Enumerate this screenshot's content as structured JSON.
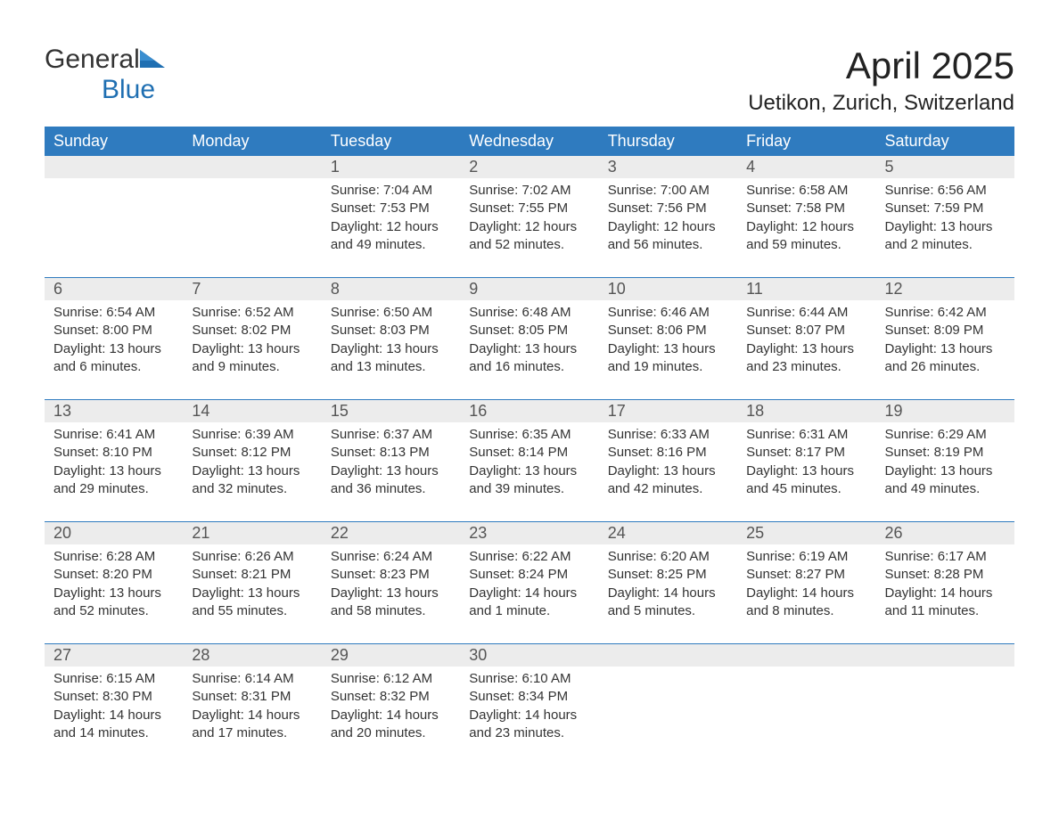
{
  "logo": {
    "word1": "General",
    "word2": "Blue"
  },
  "title": "April 2025",
  "location": "Uetikon, Zurich, Switzerland",
  "colors": {
    "header_bg": "#2f7bbf",
    "header_text": "#ffffff",
    "daynum_bg": "#ececec",
    "text": "#333333",
    "logo_blue": "#1f6fb2",
    "page_bg": "#ffffff",
    "week_border": "#2f7bbf"
  },
  "fonts": {
    "title_size": 42,
    "location_size": 24,
    "dow_size": 18,
    "daynum_size": 18,
    "detail_size": 15
  },
  "calendar": {
    "days_of_week": [
      "Sunday",
      "Monday",
      "Tuesday",
      "Wednesday",
      "Thursday",
      "Friday",
      "Saturday"
    ],
    "weeks": [
      [
        null,
        null,
        {
          "n": "1",
          "sr": "Sunrise: 7:04 AM",
          "ss": "Sunset: 7:53 PM",
          "d1": "Daylight: 12 hours",
          "d2": "and 49 minutes."
        },
        {
          "n": "2",
          "sr": "Sunrise: 7:02 AM",
          "ss": "Sunset: 7:55 PM",
          "d1": "Daylight: 12 hours",
          "d2": "and 52 minutes."
        },
        {
          "n": "3",
          "sr": "Sunrise: 7:00 AM",
          "ss": "Sunset: 7:56 PM",
          "d1": "Daylight: 12 hours",
          "d2": "and 56 minutes."
        },
        {
          "n": "4",
          "sr": "Sunrise: 6:58 AM",
          "ss": "Sunset: 7:58 PM",
          "d1": "Daylight: 12 hours",
          "d2": "and 59 minutes."
        },
        {
          "n": "5",
          "sr": "Sunrise: 6:56 AM",
          "ss": "Sunset: 7:59 PM",
          "d1": "Daylight: 13 hours",
          "d2": "and 2 minutes."
        }
      ],
      [
        {
          "n": "6",
          "sr": "Sunrise: 6:54 AM",
          "ss": "Sunset: 8:00 PM",
          "d1": "Daylight: 13 hours",
          "d2": "and 6 minutes."
        },
        {
          "n": "7",
          "sr": "Sunrise: 6:52 AM",
          "ss": "Sunset: 8:02 PM",
          "d1": "Daylight: 13 hours",
          "d2": "and 9 minutes."
        },
        {
          "n": "8",
          "sr": "Sunrise: 6:50 AM",
          "ss": "Sunset: 8:03 PM",
          "d1": "Daylight: 13 hours",
          "d2": "and 13 minutes."
        },
        {
          "n": "9",
          "sr": "Sunrise: 6:48 AM",
          "ss": "Sunset: 8:05 PM",
          "d1": "Daylight: 13 hours",
          "d2": "and 16 minutes."
        },
        {
          "n": "10",
          "sr": "Sunrise: 6:46 AM",
          "ss": "Sunset: 8:06 PM",
          "d1": "Daylight: 13 hours",
          "d2": "and 19 minutes."
        },
        {
          "n": "11",
          "sr": "Sunrise: 6:44 AM",
          "ss": "Sunset: 8:07 PM",
          "d1": "Daylight: 13 hours",
          "d2": "and 23 minutes."
        },
        {
          "n": "12",
          "sr": "Sunrise: 6:42 AM",
          "ss": "Sunset: 8:09 PM",
          "d1": "Daylight: 13 hours",
          "d2": "and 26 minutes."
        }
      ],
      [
        {
          "n": "13",
          "sr": "Sunrise: 6:41 AM",
          "ss": "Sunset: 8:10 PM",
          "d1": "Daylight: 13 hours",
          "d2": "and 29 minutes."
        },
        {
          "n": "14",
          "sr": "Sunrise: 6:39 AM",
          "ss": "Sunset: 8:12 PM",
          "d1": "Daylight: 13 hours",
          "d2": "and 32 minutes."
        },
        {
          "n": "15",
          "sr": "Sunrise: 6:37 AM",
          "ss": "Sunset: 8:13 PM",
          "d1": "Daylight: 13 hours",
          "d2": "and 36 minutes."
        },
        {
          "n": "16",
          "sr": "Sunrise: 6:35 AM",
          "ss": "Sunset: 8:14 PM",
          "d1": "Daylight: 13 hours",
          "d2": "and 39 minutes."
        },
        {
          "n": "17",
          "sr": "Sunrise: 6:33 AM",
          "ss": "Sunset: 8:16 PM",
          "d1": "Daylight: 13 hours",
          "d2": "and 42 minutes."
        },
        {
          "n": "18",
          "sr": "Sunrise: 6:31 AM",
          "ss": "Sunset: 8:17 PM",
          "d1": "Daylight: 13 hours",
          "d2": "and 45 minutes."
        },
        {
          "n": "19",
          "sr": "Sunrise: 6:29 AM",
          "ss": "Sunset: 8:19 PM",
          "d1": "Daylight: 13 hours",
          "d2": "and 49 minutes."
        }
      ],
      [
        {
          "n": "20",
          "sr": "Sunrise: 6:28 AM",
          "ss": "Sunset: 8:20 PM",
          "d1": "Daylight: 13 hours",
          "d2": "and 52 minutes."
        },
        {
          "n": "21",
          "sr": "Sunrise: 6:26 AM",
          "ss": "Sunset: 8:21 PM",
          "d1": "Daylight: 13 hours",
          "d2": "and 55 minutes."
        },
        {
          "n": "22",
          "sr": "Sunrise: 6:24 AM",
          "ss": "Sunset: 8:23 PM",
          "d1": "Daylight: 13 hours",
          "d2": "and 58 minutes."
        },
        {
          "n": "23",
          "sr": "Sunrise: 6:22 AM",
          "ss": "Sunset: 8:24 PM",
          "d1": "Daylight: 14 hours",
          "d2": "and 1 minute."
        },
        {
          "n": "24",
          "sr": "Sunrise: 6:20 AM",
          "ss": "Sunset: 8:25 PM",
          "d1": "Daylight: 14 hours",
          "d2": "and 5 minutes."
        },
        {
          "n": "25",
          "sr": "Sunrise: 6:19 AM",
          "ss": "Sunset: 8:27 PM",
          "d1": "Daylight: 14 hours",
          "d2": "and 8 minutes."
        },
        {
          "n": "26",
          "sr": "Sunrise: 6:17 AM",
          "ss": "Sunset: 8:28 PM",
          "d1": "Daylight: 14 hours",
          "d2": "and 11 minutes."
        }
      ],
      [
        {
          "n": "27",
          "sr": "Sunrise: 6:15 AM",
          "ss": "Sunset: 8:30 PM",
          "d1": "Daylight: 14 hours",
          "d2": "and 14 minutes."
        },
        {
          "n": "28",
          "sr": "Sunrise: 6:14 AM",
          "ss": "Sunset: 8:31 PM",
          "d1": "Daylight: 14 hours",
          "d2": "and 17 minutes."
        },
        {
          "n": "29",
          "sr": "Sunrise: 6:12 AM",
          "ss": "Sunset: 8:32 PM",
          "d1": "Daylight: 14 hours",
          "d2": "and 20 minutes."
        },
        {
          "n": "30",
          "sr": "Sunrise: 6:10 AM",
          "ss": "Sunset: 8:34 PM",
          "d1": "Daylight: 14 hours",
          "d2": "and 23 minutes."
        },
        null,
        null,
        null
      ]
    ]
  }
}
